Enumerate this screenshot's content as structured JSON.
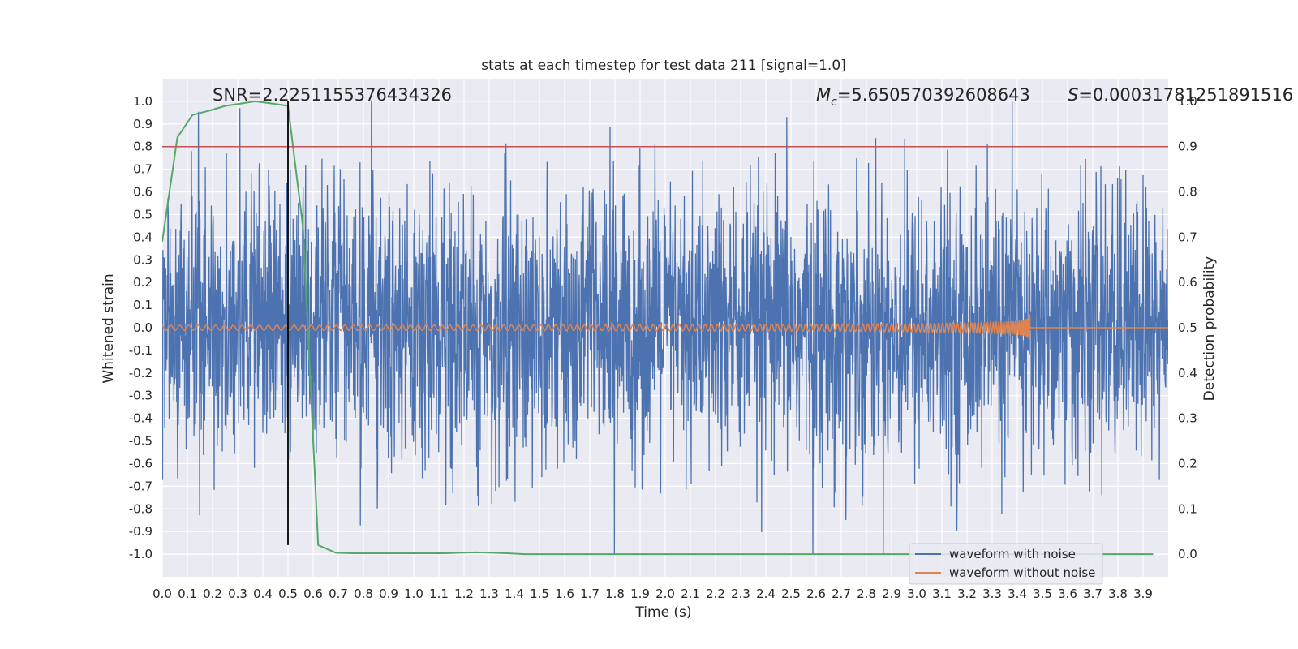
{
  "chart_data": {
    "type": "line",
    "title": "stats at each timestep for test data 211 [signal=1.0]",
    "xlabel": "Time (s)",
    "ylabel": "Whitened strain",
    "ylabel_right": "Detection probability",
    "xlim": [
      0.0,
      4.0
    ],
    "ylim": [
      -1.1,
      1.1
    ],
    "ylim_right": [
      -0.05,
      1.05
    ],
    "x_ticks": [
      "0.0",
      "0.1",
      "0.2",
      "0.3",
      "0.4",
      "0.5",
      "0.6",
      "0.7",
      "0.8",
      "0.9",
      "1.0",
      "1.1",
      "1.2",
      "1.3",
      "1.4",
      "1.5",
      "1.6",
      "1.7",
      "1.8",
      "1.9",
      "2.0",
      "2.1",
      "2.2",
      "2.3",
      "2.4",
      "2.5",
      "2.6",
      "2.7",
      "2.8",
      "2.9",
      "3.0",
      "3.1",
      "3.2",
      "3.3",
      "3.4",
      "3.5",
      "3.6",
      "3.7",
      "3.8",
      "3.9"
    ],
    "y_ticks": [
      "1.0",
      "0.9",
      "0.8",
      "0.7",
      "0.6",
      "0.5",
      "0.4",
      "0.3",
      "0.2",
      "0.1",
      "0.0",
      "-0.1",
      "-0.2",
      "-0.3",
      "-0.4",
      "-0.5",
      "-0.6",
      "-0.7",
      "-0.8",
      "-0.9",
      "-1.0"
    ],
    "y_ticks_right": [
      "1.0",
      "0.9",
      "0.8",
      "0.7",
      "0.6",
      "0.5",
      "0.4",
      "0.3",
      "0.2",
      "0.1",
      "0.0"
    ],
    "grid": true,
    "legend": "lower-right",
    "annotations": {
      "snr": "SNR=2.2251155376434326",
      "mc_symbol": "M",
      "mc_sub": "c",
      "mc_value": "=5.650570392608643",
      "s_symbol": "S",
      "s_value": "=0.00031781251891516"
    },
    "threshold_right": 0.9,
    "marker_time": 0.5,
    "series": [
      {
        "name": "waveform with noise",
        "color": "#4c72b0",
        "noise_amplitude": 0.3,
        "peak_abs": 1.0
      },
      {
        "name": "waveform without noise",
        "color": "#dd8452",
        "chirp_end_time": 3.45,
        "peak_abs": 0.06
      },
      {
        "color": "#55a868",
        "axis": "right",
        "x": [
          0.0,
          0.06,
          0.12,
          0.19,
          0.25,
          0.31,
          0.37,
          0.44,
          0.5,
          0.56,
          0.62,
          0.69,
          0.75,
          0.81,
          0.87,
          0.94,
          1.0,
          1.06,
          1.12,
          1.19,
          1.25,
          1.31,
          1.37,
          1.44,
          1.5,
          1.56,
          1.62,
          1.69,
          1.75,
          1.81,
          1.87,
          1.94,
          2.0,
          2.06,
          2.12,
          2.19,
          2.25,
          2.31,
          2.37,
          2.44,
          2.5,
          2.56,
          2.62,
          2.69,
          2.75,
          2.81,
          2.87,
          2.94,
          3.0,
          3.06,
          3.12,
          3.19,
          3.25,
          3.31,
          3.37,
          3.44,
          3.5,
          3.56,
          3.62,
          3.69,
          3.75,
          3.81,
          3.87,
          3.94
        ],
        "values": [
          0.69,
          0.92,
          0.97,
          0.98,
          0.99,
          0.995,
          1.0,
          0.995,
          0.99,
          0.72,
          0.02,
          0.003,
          0.002,
          0.002,
          0.002,
          0.002,
          0.002,
          0.002,
          0.002,
          0.003,
          0.004,
          0.003,
          0.002,
          0.0,
          0.0,
          0.0,
          0.0,
          0.0,
          0.0,
          0.0,
          0.0,
          0.0,
          0.0,
          0.0,
          0.0,
          0.0,
          0.0,
          0.0,
          0.0,
          0.0,
          0.0,
          0.0,
          0.0,
          0.0,
          0.0,
          0.0,
          0.0,
          0.0,
          0.0,
          0.0,
          0.0,
          0.0,
          0.0,
          0.0,
          0.0,
          0.0,
          0.0,
          0.0,
          0.0,
          0.0,
          0.0,
          0.0,
          0.0,
          0.0
        ]
      }
    ]
  }
}
